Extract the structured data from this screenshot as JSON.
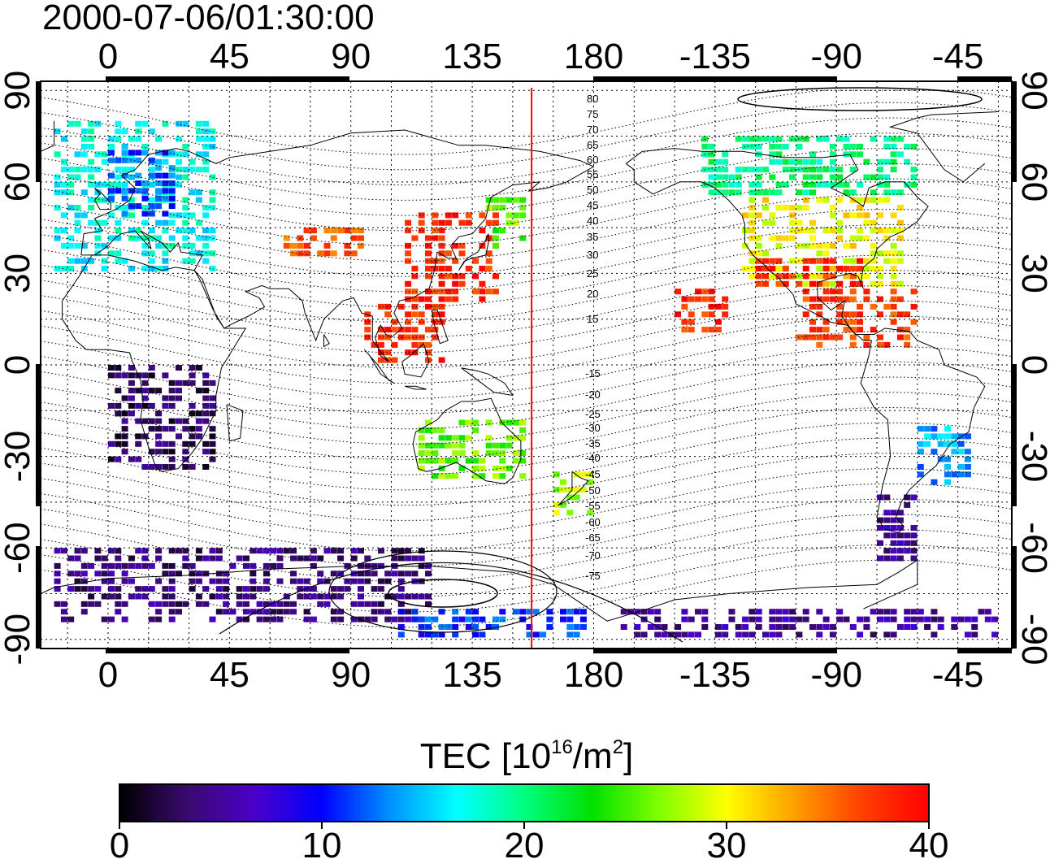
{
  "title": "2000-07-06/01:30:00",
  "map": {
    "top_lon_ticks": [
      "0",
      "45",
      "90",
      "135",
      "180",
      "-135",
      "-90",
      "-45"
    ],
    "bottom_lon_ticks": [
      "0",
      "45",
      "90",
      "135",
      "180",
      "-135",
      "-90",
      "-45"
    ],
    "left_lat_ticks": [
      "90",
      "60",
      "30",
      "0",
      "-30",
      "-60",
      "-90"
    ],
    "right_lat_ticks": [
      "90",
      "60",
      "30",
      "0",
      "-30",
      "-60",
      "-90"
    ],
    "contour_labels_north": [
      "80",
      "75",
      "70",
      "65",
      "60",
      "55",
      "50",
      "45",
      "40",
      "35",
      "30",
      "25",
      "20",
      "15"
    ],
    "contour_labels_south": [
      "-15",
      "-20",
      "-25",
      "-30",
      "-35",
      "-40",
      "-45",
      "-50",
      "-55",
      "-60",
      "-65",
      "-70",
      "-75"
    ],
    "marker_longitude": 157,
    "marker_color": "#ff0000",
    "lon_extent": [
      -25,
      335
    ],
    "lat_extent": [
      -93,
      93
    ]
  },
  "colorbar": {
    "label_prefix": "TEC  [10",
    "label_sup1": "16",
    "label_mid": "/m",
    "label_sup2": "2",
    "label_suffix": "]",
    "ticks": [
      "0",
      "10",
      "20",
      "30",
      "40"
    ],
    "range": [
      0,
      40
    ],
    "gradient": [
      "#000000",
      "#3a0a6e",
      "#4b00c8",
      "#0000ff",
      "#0090ff",
      "#00ffff",
      "#00ff80",
      "#00e000",
      "#80ff00",
      "#ffff00",
      "#ffa000",
      "#ff4000",
      "#ff0000"
    ]
  },
  "chart_data": {
    "type": "heatmap",
    "title": "2000-07-06/01:30:00",
    "colorbar_label": "TEC [10^16/m^2]",
    "value_range": [
      0,
      40
    ],
    "regions": [
      {
        "lon": [
          -20,
          40
        ],
        "lat": [
          30,
          78
        ],
        "tec": 17
      },
      {
        "lon": [
          0,
          25
        ],
        "lat": [
          48,
          70
        ],
        "tec": 12
      },
      {
        "lon": [
          65,
          95
        ],
        "lat": [
          35,
          45
        ],
        "tec": 36
      },
      {
        "lon": [
          110,
          145
        ],
        "lat": [
          20,
          48
        ],
        "tec": 38
      },
      {
        "lon": [
          140,
          155
        ],
        "lat": [
          35,
          55
        ],
        "tec": 26
      },
      {
        "lon": [
          95,
          125
        ],
        "lat": [
          0,
          20
        ],
        "tec": 38
      },
      {
        "lon": [
          115,
          155
        ],
        "lat": [
          -38,
          -18
        ],
        "tec": 26
      },
      {
        "lon": [
          165,
          180
        ],
        "lat": [
          -50,
          -35
        ],
        "tec": 28
      },
      {
        "lon": [
          -125,
          -65
        ],
        "lat": [
          25,
          55
        ],
        "tec": 30
      },
      {
        "lon": [
          -120,
          -80
        ],
        "lat": [
          25,
          35
        ],
        "tec": 38
      },
      {
        "lon": [
          -105,
          -60
        ],
        "lat": [
          5,
          25
        ],
        "tec": 37
      },
      {
        "lon": [
          -140,
          -60
        ],
        "lat": [
          55,
          75
        ],
        "tec": 20
      },
      {
        "lon": [
          -60,
          -40
        ],
        "lat": [
          -40,
          -20
        ],
        "tec": 14
      },
      {
        "lon": [
          -75,
          -60
        ],
        "lat": [
          -65,
          -40
        ],
        "tec": 5
      },
      {
        "lon": [
          0,
          40
        ],
        "lat": [
          -35,
          0
        ],
        "tec": 3
      },
      {
        "lon": [
          -20,
          120
        ],
        "lat": [
          -85,
          -60
        ],
        "tec": 4
      },
      {
        "lon": [
          105,
          180
        ],
        "lat": [
          -90,
          -80
        ],
        "tec": 11
      },
      {
        "lon": [
          -170,
          -30
        ],
        "lat": [
          -90,
          -80
        ],
        "tec": 5
      },
      {
        "lon": [
          -150,
          -130
        ],
        "lat": [
          10,
          25
        ],
        "tec": 38
      }
    ]
  }
}
